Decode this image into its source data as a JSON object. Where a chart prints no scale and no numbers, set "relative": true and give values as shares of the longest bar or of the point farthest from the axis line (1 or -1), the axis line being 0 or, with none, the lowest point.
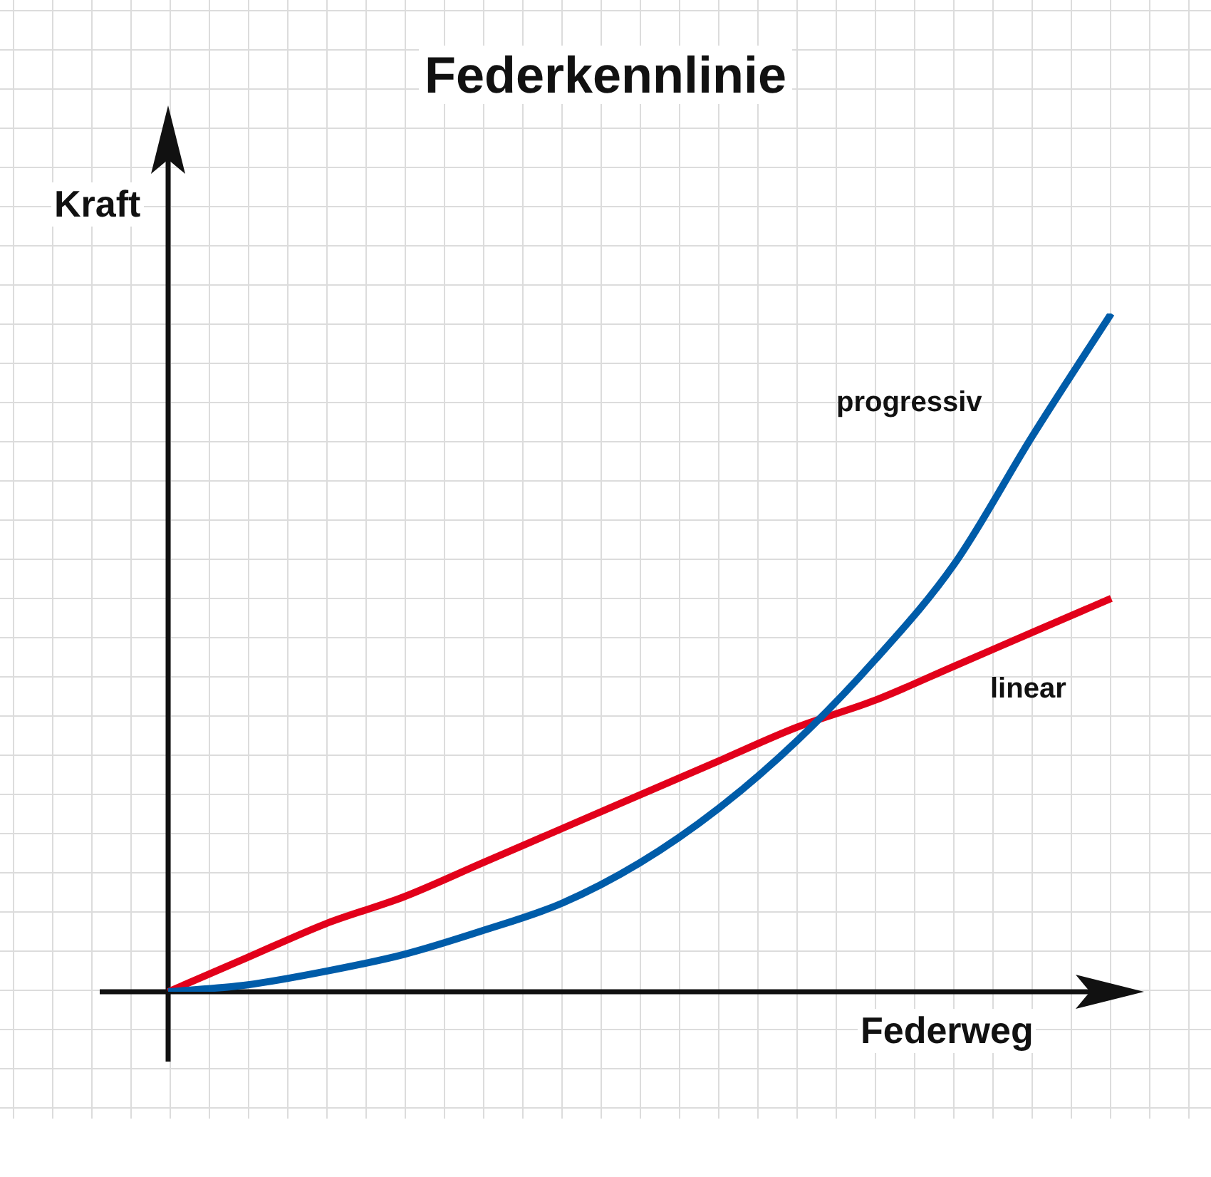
{
  "chart_data": {
    "type": "line",
    "title": "Federkennlinie",
    "xlabel": "Federweg",
    "ylabel": "Kraft",
    "relative": true,
    "legend": false,
    "marker": "none",
    "line_style": "solid",
    "categories": [
      null,
      null,
      null,
      null,
      null,
      null,
      null,
      null,
      null,
      null,
      null,
      null,
      null
    ],
    "series": [
      {
        "name": "progressiv",
        "color": "#005ca9",
        "values": [
          0,
          0.01,
          0.03,
          0.055,
          0.09,
          0.13,
          0.19,
          0.27,
          0.37,
          0.49,
          0.63,
          0.82,
          1
        ]
      },
      {
        "name": "linear",
        "color": "#e2001a",
        "values": [
          0,
          0.05,
          0.1,
          0.14,
          0.19,
          0.24,
          0.29,
          0.34,
          0.39,
          0.43,
          0.48,
          0.53,
          0.58
        ]
      }
    ]
  }
}
